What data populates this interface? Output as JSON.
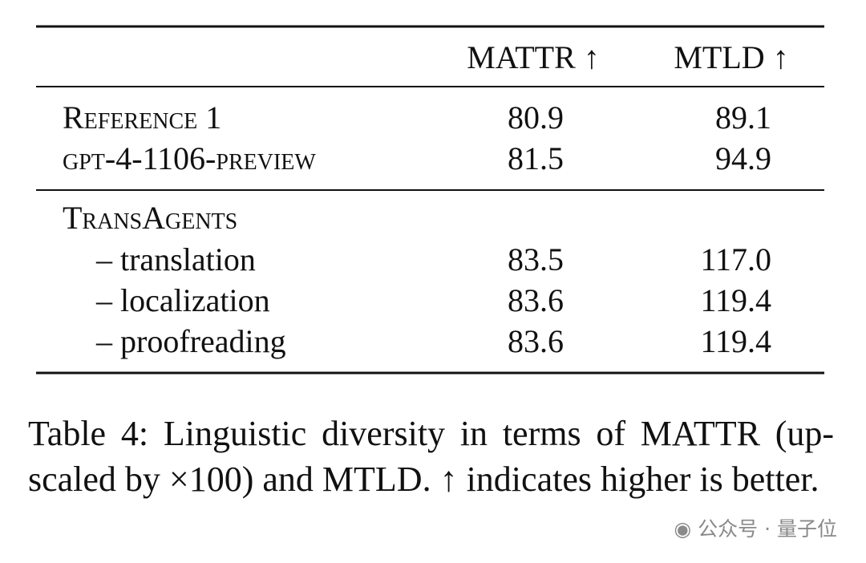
{
  "table": {
    "header": [
      "MATTR ↑",
      "MTLD ↑"
    ],
    "groups": [
      {
        "rows": [
          {
            "label": "Reference 1",
            "cells": [
              "80.9",
              "89.1"
            ]
          },
          {
            "label": "gpt-4-1106-preview",
            "cells": [
              "81.5",
              "94.9"
            ]
          }
        ]
      },
      {
        "title": "TransAgents",
        "rows": [
          {
            "label": "– translation",
            "cells": [
              "83.5",
              "117.0"
            ]
          },
          {
            "label": "– localization",
            "cells": [
              "83.6",
              "119.4"
            ]
          },
          {
            "label": "– proofreading",
            "cells": [
              "83.6",
              "119.4"
            ]
          }
        ]
      }
    ]
  },
  "caption": "Table 4: Linguistic diversity in terms of MATTR (up-scaled by ×100) and MTLD. ↑ indicates higher is better.",
  "watermark": "公众号 · 量子位"
}
